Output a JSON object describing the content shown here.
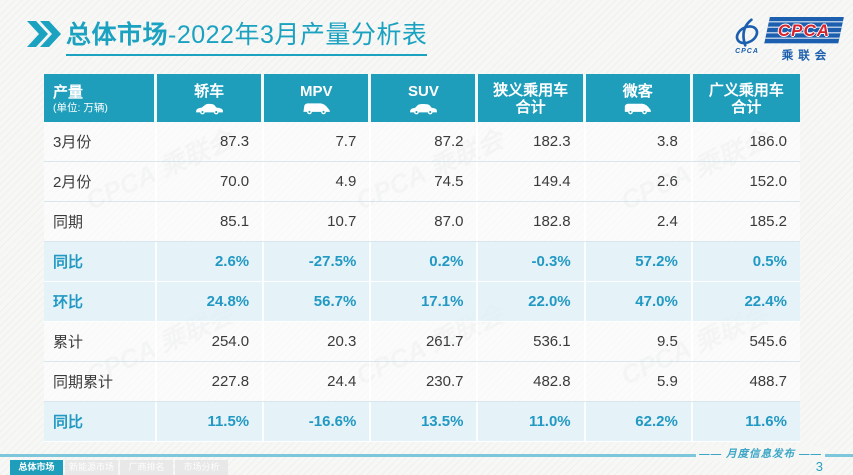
{
  "title": {
    "section": "总体市场",
    "rest": "-2022年3月产量分析表"
  },
  "logo": {
    "wordmark": "CPCA",
    "swirl_caption": "CPCA",
    "sub_label": "乘联会"
  },
  "watermark_text": "CPCA 乘联会",
  "table": {
    "unit_cell": {
      "title": "产量",
      "subtitle": "(单位: 万辆)"
    },
    "columns": [
      {
        "label": "轿车",
        "icon": "sedan"
      },
      {
        "label": "MPV",
        "icon": "mpv"
      },
      {
        "label": "SUV",
        "icon": "suv"
      },
      {
        "label": "狭义乘用车",
        "label2": "合计"
      },
      {
        "label": "微客",
        "icon": "microvan"
      },
      {
        "label": "广义乘用车",
        "label2": "合计"
      }
    ],
    "rows": [
      {
        "label": "3月份",
        "highlight": false,
        "values": [
          "87.3",
          "7.7",
          "87.2",
          "182.3",
          "3.8",
          "186.0"
        ]
      },
      {
        "label": "2月份",
        "highlight": false,
        "values": [
          "70.0",
          "4.9",
          "74.5",
          "149.4",
          "2.6",
          "152.0"
        ]
      },
      {
        "label": "同期",
        "highlight": false,
        "values": [
          "85.1",
          "10.7",
          "87.0",
          "182.8",
          "2.4",
          "185.2"
        ]
      },
      {
        "label": "同比",
        "highlight": true,
        "values": [
          "2.6%",
          "-27.5%",
          "0.2%",
          "-0.3%",
          "57.2%",
          "0.5%"
        ]
      },
      {
        "label": "环比",
        "highlight": true,
        "values": [
          "24.8%",
          "56.7%",
          "17.1%",
          "22.0%",
          "47.0%",
          "22.4%"
        ]
      },
      {
        "label": "累计",
        "highlight": false,
        "values": [
          "254.0",
          "20.3",
          "261.7",
          "536.1",
          "9.5",
          "545.6"
        ]
      },
      {
        "label": "同期累计",
        "highlight": false,
        "values": [
          "227.8",
          "24.4",
          "230.7",
          "482.8",
          "5.9",
          "488.7"
        ]
      },
      {
        "label": "同比",
        "highlight": true,
        "values": [
          "11.5%",
          "-16.6%",
          "13.5%",
          "11.0%",
          "62.2%",
          "11.6%"
        ]
      }
    ]
  },
  "footer": {
    "tabs": [
      {
        "label": "总体市场",
        "active": true
      },
      {
        "label": "新能源市场",
        "active": false
      },
      {
        "label": "厂商排名",
        "active": false
      },
      {
        "label": "市场分析",
        "active": false
      }
    ],
    "release_label": "月度信息发布",
    "page_number": "3"
  },
  "colors": {
    "accent": "#1BA2C1",
    "header_bg": "#1E9EBB",
    "highlight_bg": "#E2F1F8",
    "highlight_text": "#2199C3",
    "logo_blue": "#1B5FAE",
    "logo_red": "#D5232E",
    "divider": "#7CC7DC"
  }
}
